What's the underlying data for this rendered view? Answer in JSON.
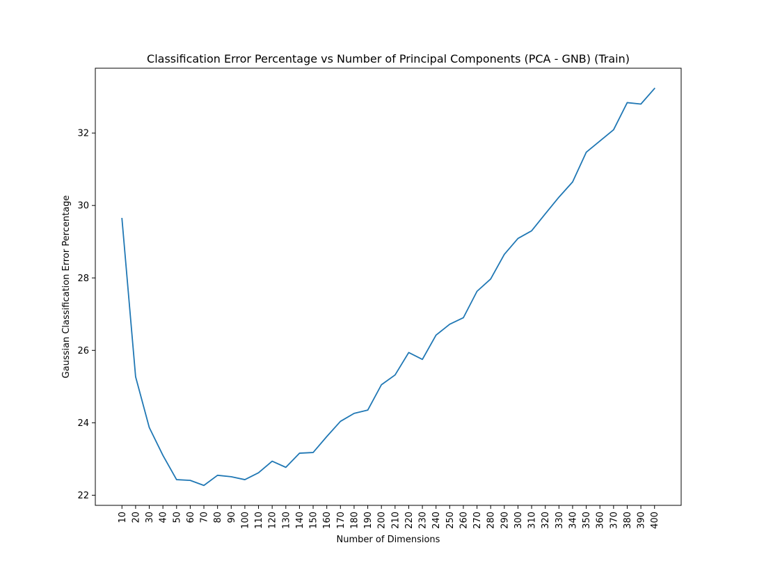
{
  "chart_data": {
    "type": "line",
    "title": "Classification Error Percentage vs Number of Principal Components (PCA - GNB) (Train)",
    "xlabel": "Number of Dimensions",
    "ylabel": "Gaussian Classification Error Percentage",
    "x": [
      10,
      20,
      30,
      40,
      50,
      60,
      70,
      80,
      90,
      100,
      110,
      120,
      130,
      140,
      150,
      160,
      170,
      180,
      190,
      200,
      210,
      220,
      230,
      240,
      250,
      260,
      270,
      280,
      290,
      300,
      310,
      320,
      330,
      340,
      350,
      360,
      370,
      380,
      390,
      400
    ],
    "series": [
      {
        "color": "#1f77b4",
        "values": [
          29.64,
          25.27,
          23.87,
          23.1,
          22.43,
          22.41,
          22.27,
          22.55,
          22.51,
          22.43,
          22.62,
          22.94,
          22.77,
          23.16,
          23.18,
          23.62,
          24.04,
          24.26,
          24.35,
          25.05,
          25.32,
          25.94,
          25.75,
          26.42,
          26.72,
          26.9,
          27.63,
          27.97,
          28.65,
          29.09,
          29.3,
          29.77,
          30.23,
          30.65,
          31.47,
          31.78,
          32.09,
          32.84,
          32.8,
          33.23
        ]
      }
    ],
    "xlim": [
      -9.5,
      419.5
    ],
    "ylim": [
      21.72,
      33.79
    ],
    "yticks": [
      22,
      24,
      26,
      28,
      30,
      32
    ],
    "xticks": [
      10,
      20,
      30,
      40,
      50,
      60,
      70,
      80,
      90,
      100,
      110,
      120,
      130,
      140,
      150,
      160,
      170,
      180,
      190,
      200,
      210,
      220,
      230,
      240,
      250,
      260,
      270,
      280,
      290,
      300,
      310,
      320,
      330,
      340,
      350,
      360,
      370,
      380,
      390,
      400
    ],
    "grid": false,
    "legend": "none"
  }
}
